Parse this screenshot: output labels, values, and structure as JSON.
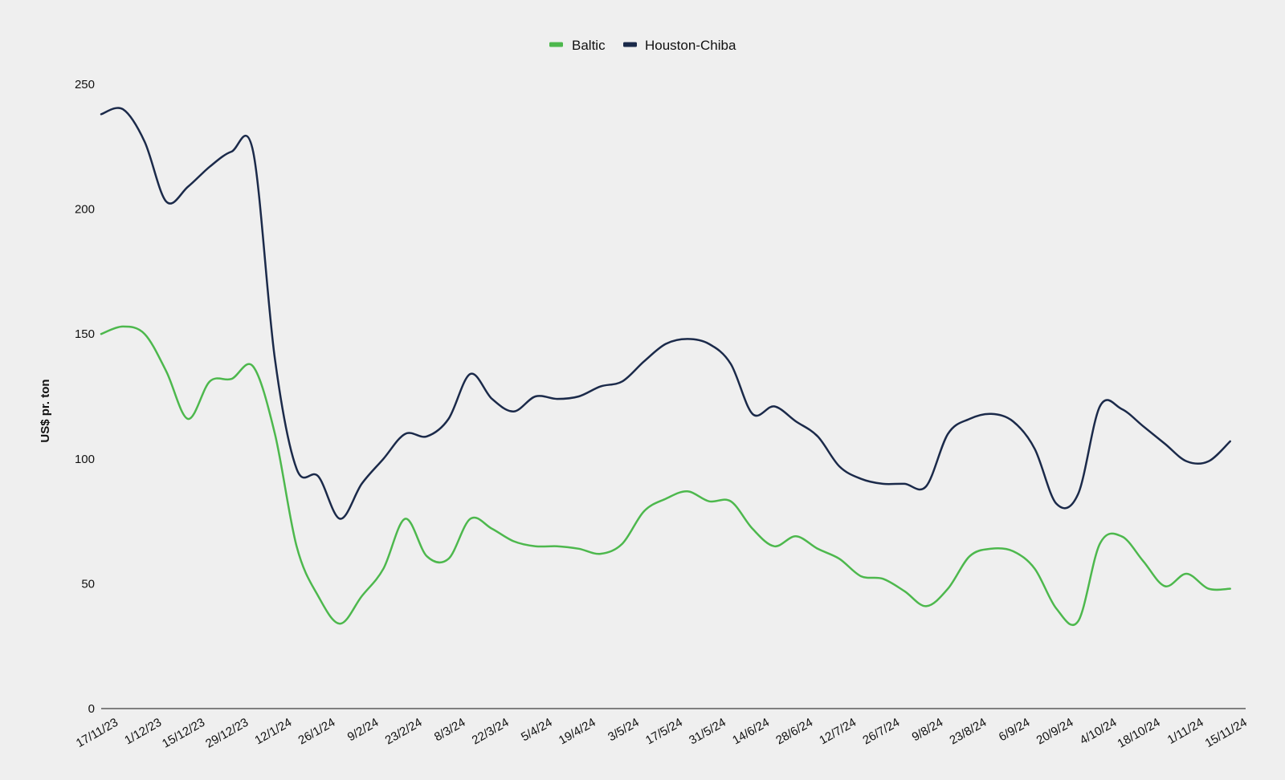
{
  "chart_data": {
    "type": "line",
    "title": "",
    "xlabel": "",
    "ylabel": "US$ pr. ton",
    "ylim": [
      0,
      250
    ],
    "yticks": [
      0,
      50,
      100,
      150,
      200,
      250
    ],
    "grid": false,
    "legend_position": "top-center",
    "x_tick_labels": [
      "17/11/23",
      "1/12/23",
      "15/12/23",
      "29/12/23",
      "12/1/24",
      "26/1/24",
      "9/2/24",
      "23/2/24",
      "8/3/24",
      "22/3/24",
      "5/4/24",
      "19/4/24",
      "3/5/24",
      "17/5/24",
      "31/5/24",
      "14/6/24",
      "28/6/24",
      "12/7/24",
      "26/7/24",
      "9/8/24",
      "23/8/24",
      "6/9/24",
      "20/9/24",
      "4/10/24",
      "18/10/24",
      "1/11/24",
      "15/11/24"
    ],
    "x_tick_dates": [
      "2023-11-17",
      "2023-12-01",
      "2023-12-15",
      "2023-12-29",
      "2024-01-12",
      "2024-01-26",
      "2024-02-09",
      "2024-02-23",
      "2024-03-08",
      "2024-03-22",
      "2024-04-05",
      "2024-04-19",
      "2024-05-03",
      "2024-05-17",
      "2024-05-31",
      "2024-06-14",
      "2024-06-28",
      "2024-07-12",
      "2024-07-26",
      "2024-08-09",
      "2024-08-23",
      "2024-09-06",
      "2024-09-20",
      "2024-10-04",
      "2024-10-18",
      "2024-11-01",
      "2024-11-15"
    ],
    "x_range": [
      "2023-11-17",
      "2024-11-20"
    ],
    "x": [
      "2023-11-17",
      "2023-11-24",
      "2023-12-01",
      "2023-12-08",
      "2023-12-15",
      "2023-12-22",
      "2023-12-29",
      "2024-01-05",
      "2024-01-12",
      "2024-01-19",
      "2024-01-26",
      "2024-02-02",
      "2024-02-09",
      "2024-02-16",
      "2024-02-23",
      "2024-03-01",
      "2024-03-08",
      "2024-03-15",
      "2024-03-22",
      "2024-03-29",
      "2024-04-05",
      "2024-04-12",
      "2024-04-19",
      "2024-04-26",
      "2024-05-03",
      "2024-05-10",
      "2024-05-17",
      "2024-05-24",
      "2024-05-31",
      "2024-06-07",
      "2024-06-14",
      "2024-06-21",
      "2024-06-28",
      "2024-07-05",
      "2024-07-12",
      "2024-07-19",
      "2024-07-26",
      "2024-08-02",
      "2024-08-09",
      "2024-08-16",
      "2024-08-23",
      "2024-08-30",
      "2024-09-06",
      "2024-09-13",
      "2024-09-20",
      "2024-09-27",
      "2024-10-04",
      "2024-10-11",
      "2024-10-18",
      "2024-10-25",
      "2024-11-01",
      "2024-11-08",
      "2024-11-15"
    ],
    "series": [
      {
        "name": "Baltic",
        "color": "#4db84d",
        "values": [
          150,
          153,
          150,
          135,
          116,
          131,
          132,
          137,
          110,
          65,
          45,
          34,
          45,
          56,
          76,
          61,
          60,
          76,
          72,
          67,
          65,
          65,
          64,
          62,
          66,
          79,
          84,
          87,
          83,
          83,
          72,
          65,
          69,
          64,
          60,
          53,
          52,
          47,
          41,
          48,
          61,
          64,
          63,
          56,
          40,
          35,
          66,
          69,
          59,
          49,
          54,
          48,
          48
        ]
      },
      {
        "name": "Houston-Chiba",
        "color": "#1b2a4a",
        "values": [
          238,
          240,
          227,
          203,
          209,
          217,
          223,
          223,
          140,
          96,
          93,
          76,
          90,
          100,
          110,
          109,
          116,
          134,
          124,
          119,
          125,
          124,
          125,
          129,
          131,
          139,
          146,
          148,
          146,
          138,
          118,
          121,
          115,
          109,
          97,
          92,
          90,
          90,
          89,
          110,
          116,
          118,
          115,
          104,
          82,
          86,
          121,
          120,
          113,
          106,
          99,
          99,
          107
        ]
      }
    ]
  }
}
